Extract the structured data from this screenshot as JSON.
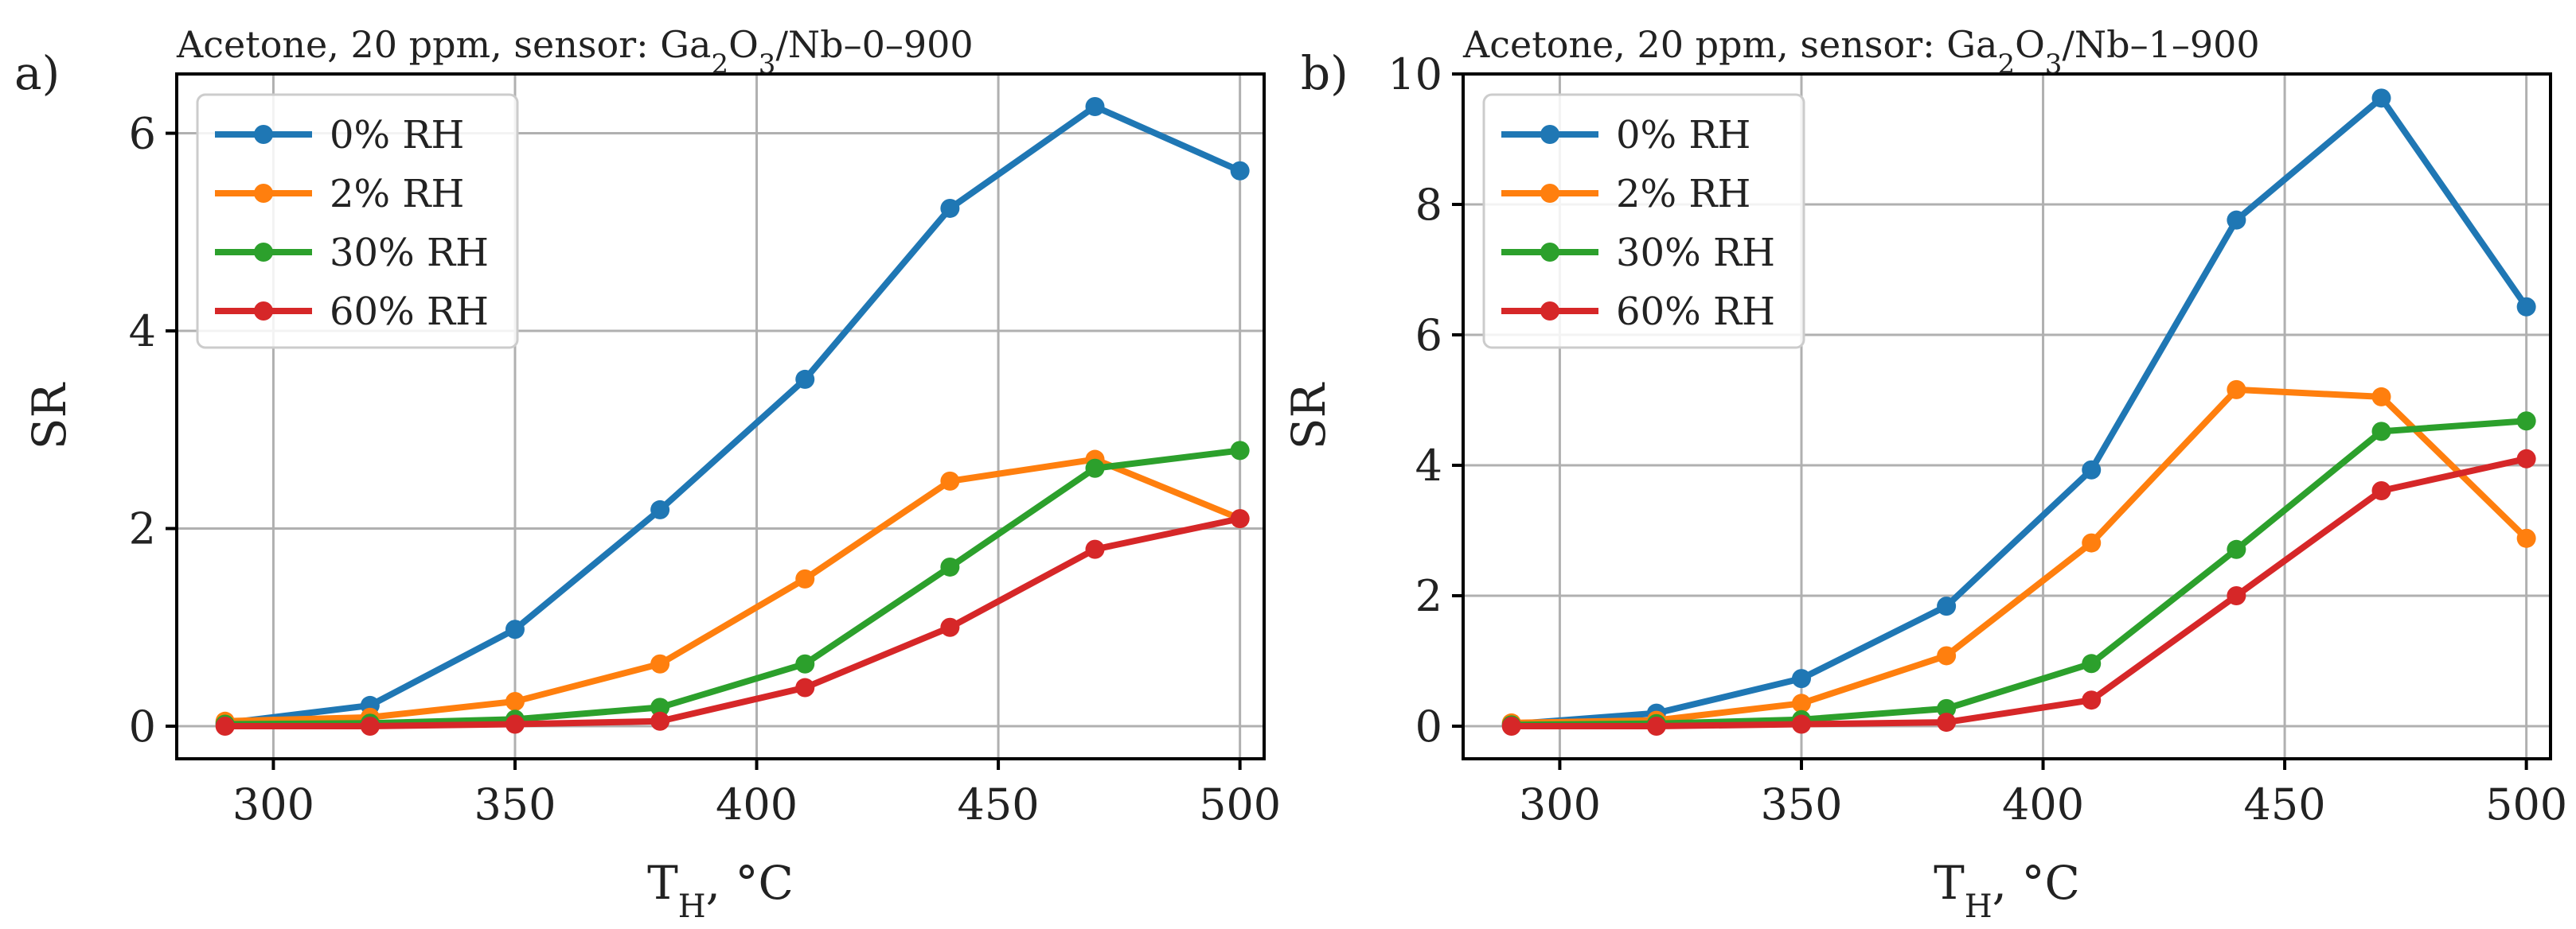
{
  "chart_data": [
    {
      "panel_label": "a)",
      "type": "line",
      "title_parts": [
        "Acetone, 20 ppm, sensor: Ga",
        "2",
        "O",
        "3",
        "/Nb–0–900"
      ],
      "xlabel_parts": [
        "T",
        "H",
        ", °C"
      ],
      "ylabel": "SR",
      "xlim": [
        280,
        505
      ],
      "ylim": [
        -0.33,
        6.6
      ],
      "xticks": [
        300,
        350,
        400,
        450,
        500
      ],
      "yticks": [
        0,
        2,
        4,
        6
      ],
      "grid": true,
      "legend_position": "upper-left",
      "x": [
        290,
        320,
        350,
        380,
        410,
        440,
        470,
        500
      ],
      "series": [
        {
          "name": "0% RH",
          "color": "#1f77b4",
          "values": [
            0.03,
            0.21,
            0.98,
            2.19,
            3.51,
            5.24,
            6.27,
            5.62
          ]
        },
        {
          "name": "2% RH",
          "color": "#ff7f0e",
          "values": [
            0.05,
            0.09,
            0.25,
            0.63,
            1.49,
            2.48,
            2.7,
            2.1
          ]
        },
        {
          "name": "30% RH",
          "color": "#2ca02c",
          "values": [
            0.02,
            0.03,
            0.07,
            0.19,
            0.63,
            1.61,
            2.61,
            2.79
          ]
        },
        {
          "name": "60% RH",
          "color": "#d62728",
          "values": [
            0.0,
            0.0,
            0.02,
            0.05,
            0.39,
            1.0,
            1.79,
            2.1
          ]
        }
      ]
    },
    {
      "panel_label": "b)",
      "type": "line",
      "title_parts": [
        "Acetone, 20 ppm, sensor: Ga",
        "2",
        "O",
        "3",
        "/Nb–1–900"
      ],
      "xlabel_parts": [
        "T",
        "H",
        ", °C"
      ],
      "ylabel": "SR",
      "xlim": [
        280,
        505
      ],
      "ylim": [
        -0.5,
        10.0
      ],
      "xticks": [
        300,
        350,
        400,
        450,
        500
      ],
      "yticks": [
        0,
        2,
        4,
        6,
        8,
        10
      ],
      "grid": true,
      "legend_position": "upper-left",
      "x": [
        290,
        320,
        350,
        380,
        410,
        440,
        470,
        500
      ],
      "series": [
        {
          "name": "0% RH",
          "color": "#1f77b4",
          "values": [
            0.03,
            0.2,
            0.73,
            1.84,
            3.93,
            7.76,
            9.63,
            6.43
          ]
        },
        {
          "name": "2% RH",
          "color": "#ff7f0e",
          "values": [
            0.05,
            0.09,
            0.35,
            1.08,
            2.81,
            5.16,
            5.05,
            2.88
          ]
        },
        {
          "name": "30% RH",
          "color": "#2ca02c",
          "values": [
            0.02,
            0.04,
            0.1,
            0.27,
            0.96,
            2.71,
            4.52,
            4.68
          ]
        },
        {
          "name": "60% RH",
          "color": "#d62728",
          "values": [
            0.0,
            0.0,
            0.03,
            0.06,
            0.4,
            2.0,
            3.61,
            4.1
          ]
        }
      ]
    }
  ]
}
